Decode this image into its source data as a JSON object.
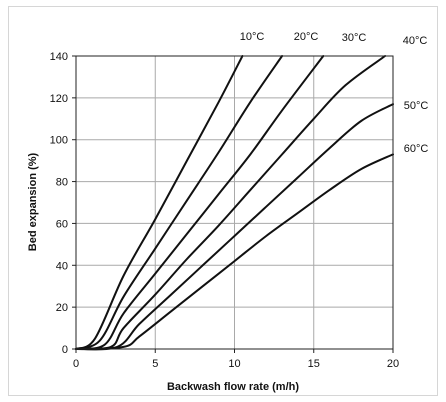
{
  "chart_data": {
    "type": "line",
    "title": "",
    "xlabel": "Backwash flow rate (m/h)",
    "ylabel": "Bed expansion (%)",
    "xlim": [
      0,
      20
    ],
    "ylim": [
      0,
      140
    ],
    "xticks": [
      0,
      5,
      10,
      15,
      20
    ],
    "yticks": [
      0,
      20,
      40,
      60,
      80,
      100,
      120,
      140
    ],
    "grid": true,
    "legend": "none",
    "line_color": "#111111",
    "series": [
      {
        "name": "10°C",
        "points": [
          [
            0,
            0
          ],
          [
            1.2,
            5
          ],
          [
            3,
            35
          ],
          [
            5,
            62
          ],
          [
            7,
            90
          ],
          [
            9,
            118
          ],
          [
            10.5,
            140
          ]
        ]
      },
      {
        "name": "20°C",
        "points": [
          [
            0,
            0
          ],
          [
            1.5,
            4
          ],
          [
            3,
            25
          ],
          [
            5,
            48
          ],
          [
            7,
            71
          ],
          [
            9,
            94
          ],
          [
            11,
            118
          ],
          [
            13,
            140
          ]
        ]
      },
      {
        "name": "30°C",
        "points": [
          [
            0,
            0
          ],
          [
            1.8,
            2
          ],
          [
            3,
            17
          ],
          [
            5,
            36
          ],
          [
            7,
            55
          ],
          [
            9,
            74
          ],
          [
            11,
            93
          ],
          [
            13,
            114
          ],
          [
            15.6,
            140
          ]
        ]
      },
      {
        "name": "40°C",
        "points": [
          [
            0,
            0
          ],
          [
            2.2,
            1
          ],
          [
            3,
            10
          ],
          [
            5,
            26
          ],
          [
            7,
            43
          ],
          [
            9,
            59
          ],
          [
            11,
            76
          ],
          [
            13,
            93
          ],
          [
            15,
            110
          ],
          [
            17,
            126
          ],
          [
            19.5,
            140
          ]
        ]
      },
      {
        "name": "50°C",
        "points": [
          [
            0,
            0
          ],
          [
            2.6,
            1
          ],
          [
            4,
            12
          ],
          [
            6,
            26
          ],
          [
            8,
            40
          ],
          [
            10,
            54
          ],
          [
            12,
            68
          ],
          [
            14,
            82
          ],
          [
            16,
            96
          ],
          [
            18,
            109
          ],
          [
            20,
            117
          ]
        ]
      },
      {
        "name": "60°C",
        "points": [
          [
            0,
            0
          ],
          [
            3,
            1
          ],
          [
            4,
            6
          ],
          [
            6,
            18
          ],
          [
            8,
            30
          ],
          [
            10,
            42
          ],
          [
            12,
            54
          ],
          [
            14,
            65
          ],
          [
            16,
            76
          ],
          [
            18,
            86
          ],
          [
            20,
            93
          ]
        ]
      }
    ]
  }
}
